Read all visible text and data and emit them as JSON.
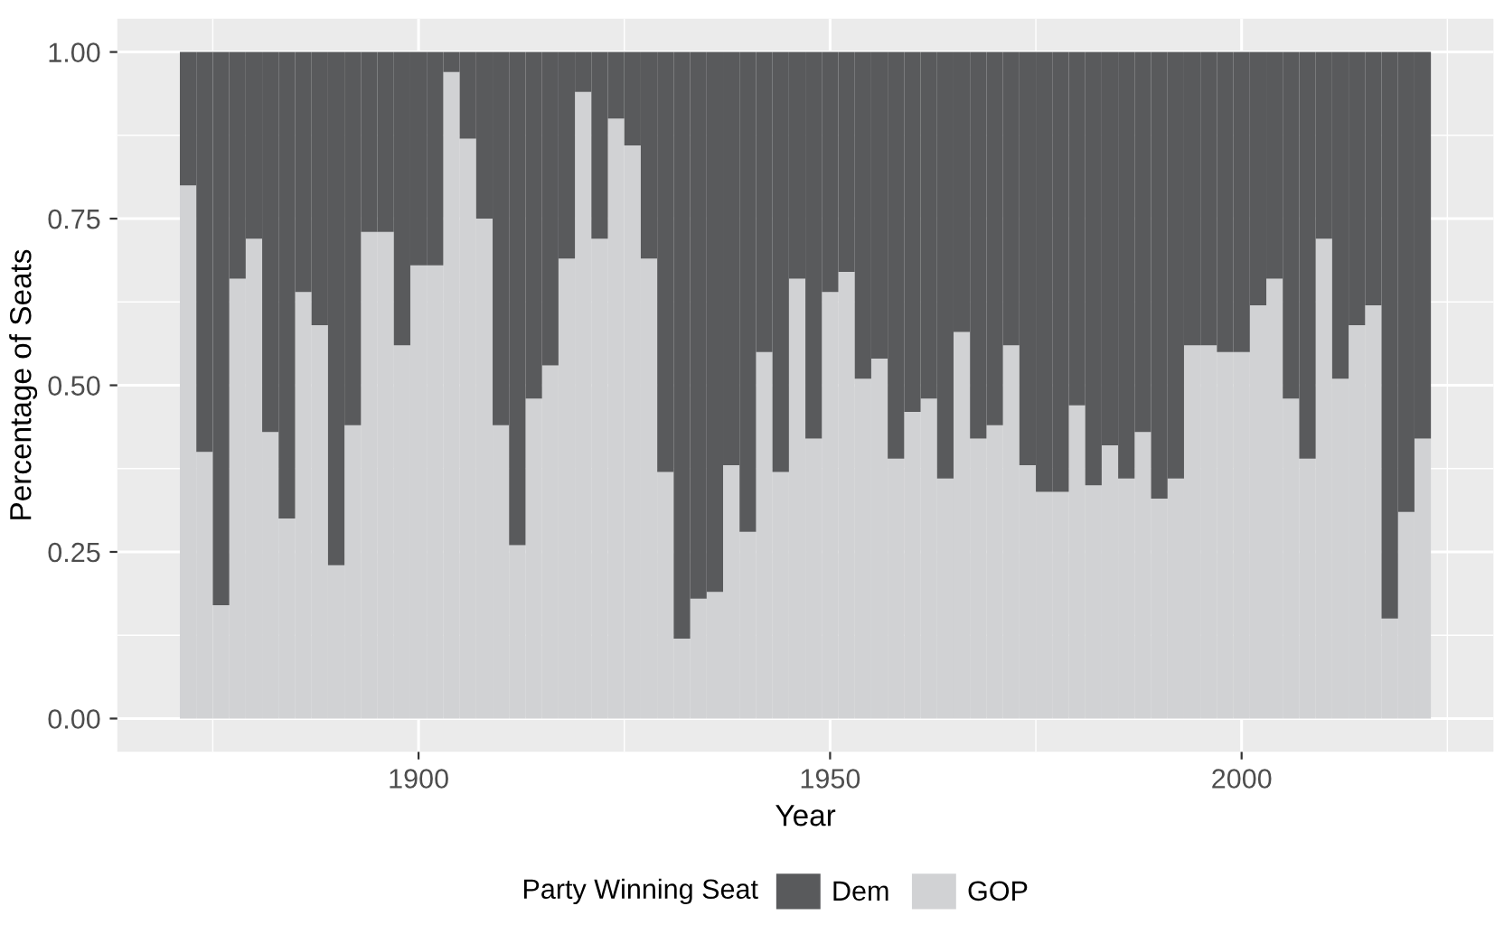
{
  "chart_data": {
    "type": "bar",
    "stacked": true,
    "xlabel": "Year",
    "ylabel": "Percentage of Seats",
    "legend_title": "Party Winning Seat",
    "legend": "bottom",
    "grid": true,
    "x": [
      1872,
      1874,
      1876,
      1878,
      1880,
      1882,
      1884,
      1886,
      1888,
      1890,
      1892,
      1894,
      1896,
      1898,
      1900,
      1902,
      1904,
      1906,
      1908,
      1910,
      1912,
      1914,
      1916,
      1918,
      1920,
      1922,
      1924,
      1926,
      1928,
      1930,
      1932,
      1934,
      1936,
      1938,
      1940,
      1942,
      1944,
      1946,
      1948,
      1950,
      1952,
      1954,
      1956,
      1958,
      1960,
      1962,
      1964,
      1966,
      1968,
      1970,
      1972,
      1974,
      1976,
      1978,
      1980,
      1982,
      1984,
      1986,
      1988,
      1990,
      1992,
      1994,
      1996,
      1998,
      2000,
      2002,
      2004,
      2006,
      2008,
      2010,
      2012,
      2014,
      2016,
      2018,
      2020,
      2022
    ],
    "series": [
      {
        "name": "GOP",
        "color": "#d1d2d4",
        "values": [
          0.8,
          0.4,
          0.17,
          0.66,
          0.72,
          0.43,
          0.3,
          0.64,
          0.59,
          0.23,
          0.44,
          0.73,
          0.73,
          0.56,
          0.68,
          0.68,
          0.97,
          0.87,
          0.75,
          0.44,
          0.26,
          0.48,
          0.53,
          0.69,
          0.94,
          0.72,
          0.9,
          0.86,
          0.69,
          0.37,
          0.12,
          0.18,
          0.19,
          0.38,
          0.28,
          0.55,
          0.37,
          0.66,
          0.42,
          0.64,
          0.67,
          0.51,
          0.54,
          0.39,
          0.46,
          0.48,
          0.36,
          0.58,
          0.42,
          0.44,
          0.56,
          0.38,
          0.34,
          0.34,
          0.47,
          0.35,
          0.41,
          0.36,
          0.43,
          0.33,
          0.36,
          0.56,
          0.56,
          0.55,
          0.55,
          0.62,
          0.66,
          0.48,
          0.39,
          0.72,
          0.51,
          0.59,
          0.62,
          0.15,
          0.31,
          0.42
        ]
      },
      {
        "name": "Dem",
        "color": "#595a5c",
        "values": [
          0.2,
          0.6,
          0.83,
          0.34,
          0.28,
          0.57,
          0.7,
          0.36,
          0.41,
          0.77,
          0.56,
          0.27,
          0.27,
          0.44,
          0.32,
          0.32,
          0.03,
          0.13,
          0.25,
          0.56,
          0.74,
          0.52,
          0.47,
          0.31,
          0.06,
          0.28,
          0.1,
          0.14,
          0.31,
          0.63,
          0.88,
          0.82,
          0.81,
          0.62,
          0.72,
          0.45,
          0.63,
          0.34,
          0.58,
          0.36,
          0.33,
          0.49,
          0.46,
          0.61,
          0.54,
          0.52,
          0.64,
          0.42,
          0.58,
          0.56,
          0.44,
          0.62,
          0.66,
          0.66,
          0.53,
          0.65,
          0.59,
          0.64,
          0.57,
          0.67,
          0.64,
          0.44,
          0.44,
          0.45,
          0.45,
          0.38,
          0.34,
          0.52,
          0.61,
          0.28,
          0.49,
          0.41,
          0.38,
          0.85,
          0.69,
          0.58
        ]
      }
    ],
    "xlim": [
      1863.4,
      2030.6
    ],
    "xticks": [
      1900,
      1950,
      2000
    ],
    "ylim": [
      -0.05,
      1.05
    ],
    "yticks": [
      {
        "value": 0,
        "label": "0.00"
      },
      {
        "value": 0.25,
        "label": "0.25"
      },
      {
        "value": 0.5,
        "label": "0.50"
      },
      {
        "value": 0.75,
        "label": "0.75"
      },
      {
        "value": 1,
        "label": "1.00"
      }
    ]
  }
}
